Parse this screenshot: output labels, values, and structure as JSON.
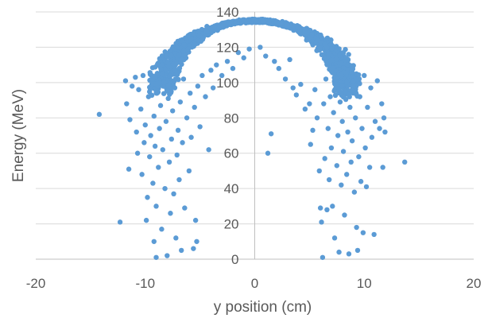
{
  "chart_data": {
    "type": "scatter",
    "title": "",
    "xlabel": "y position (cm)",
    "ylabel": "Energy (MeV)",
    "xlim": [
      -20,
      20
    ],
    "ylim": [
      0,
      140
    ],
    "x_ticks": [
      -20,
      -10,
      0,
      10,
      20
    ],
    "y_ticks": [
      0,
      20,
      40,
      60,
      80,
      100,
      120,
      140
    ],
    "x_tick_labels": [
      "-20",
      "-10",
      "0",
      "10",
      "20"
    ],
    "y_tick_labels": [
      "0",
      "20",
      "40",
      "60",
      "80",
      "100",
      "120",
      "140"
    ],
    "grid": "horizontal major gridlines",
    "legend": "none",
    "marker_color": "#5b9bd5",
    "series": [
      {
        "values": [
          {
            "x": -14.2,
            "y": 82
          },
          {
            "x": -12.3,
            "y": 21
          },
          {
            "x": -11.8,
            "y": 101
          },
          {
            "x": -11.7,
            "y": 88
          },
          {
            "x": -11.5,
            "y": 51
          },
          {
            "x": -11.4,
            "y": 79
          },
          {
            "x": -11.2,
            "y": 98
          },
          {
            "x": -10.9,
            "y": 103
          },
          {
            "x": -10.8,
            "y": 72
          },
          {
            "x": -10.7,
            "y": 60
          },
          {
            "x": -10.6,
            "y": 96
          },
          {
            "x": -10.4,
            "y": 85
          },
          {
            "x": -10.3,
            "y": 48
          },
          {
            "x": -10.2,
            "y": 104
          },
          {
            "x": -10.1,
            "y": 66
          },
          {
            "x": -10.0,
            "y": 76
          },
          {
            "x": -9.9,
            "y": 22
          },
          {
            "x": -9.8,
            "y": 35
          },
          {
            "x": -9.7,
            "y": 92
          },
          {
            "x": -9.6,
            "y": 58
          },
          {
            "x": -9.5,
            "y": 70
          },
          {
            "x": -9.4,
            "y": 99
          },
          {
            "x": -9.3,
            "y": 43
          },
          {
            "x": -9.2,
            "y": 81
          },
          {
            "x": -9.2,
            "y": 10
          },
          {
            "x": -9.1,
            "y": 64
          },
          {
            "x": -9.0,
            "y": 1
          },
          {
            "x": -9.0,
            "y": 30
          },
          {
            "x": -8.9,
            "y": 95
          },
          {
            "x": -8.8,
            "y": 52
          },
          {
            "x": -8.7,
            "y": 74
          },
          {
            "x": -8.6,
            "y": 87
          },
          {
            "x": -8.5,
            "y": 17
          },
          {
            "x": -8.4,
            "y": 62
          },
          {
            "x": -8.3,
            "y": 100
          },
          {
            "x": -8.2,
            "y": 40
          },
          {
            "x": -8.1,
            "y": 78
          },
          {
            "x": -8.0,
            "y": 2
          },
          {
            "x": -7.9,
            "y": 91
          },
          {
            "x": -7.8,
            "y": 55
          },
          {
            "x": -7.7,
            "y": 26
          },
          {
            "x": -7.6,
            "y": 68
          },
          {
            "x": -7.5,
            "y": 84
          },
          {
            "x": -7.4,
            "y": 37
          },
          {
            "x": -7.3,
            "y": 97
          },
          {
            "x": -7.2,
            "y": 12
          },
          {
            "x": -7.1,
            "y": 59
          },
          {
            "x": -7.0,
            "y": 73
          },
          {
            "x": -6.9,
            "y": 45
          },
          {
            "x": -6.8,
            "y": 89
          },
          {
            "x": -6.7,
            "y": 5
          },
          {
            "x": -6.6,
            "y": 66
          },
          {
            "x": -6.5,
            "y": 102
          },
          {
            "x": -6.4,
            "y": 29
          },
          {
            "x": -6.2,
            "y": 80
          },
          {
            "x": -6.0,
            "y": 50
          },
          {
            "x": -5.9,
            "y": 94
          },
          {
            "x": -5.8,
            "y": 69
          },
          {
            "x": -5.6,
            "y": 6
          },
          {
            "x": -5.5,
            "y": 86
          },
          {
            "x": -5.4,
            "y": 22
          },
          {
            "x": -5.3,
            "y": 10
          },
          {
            "x": -5.2,
            "y": 98
          },
          {
            "x": -5.0,
            "y": 75
          },
          {
            "x": -4.8,
            "y": 104
          },
          {
            "x": -4.5,
            "y": 92
          },
          {
            "x": -4.2,
            "y": 62
          },
          {
            "x": -4.0,
            "y": 107
          },
          {
            "x": -3.8,
            "y": 97
          },
          {
            "x": -3.5,
            "y": 110
          },
          {
            "x": -3.0,
            "y": 104
          },
          {
            "x": -2.5,
            "y": 112
          },
          {
            "x": -2.0,
            "y": 108
          },
          {
            "x": -1.5,
            "y": 117
          },
          {
            "x": -1.0,
            "y": 114
          },
          {
            "x": -0.5,
            "y": 119
          },
          {
            "x": 0.5,
            "y": 120
          },
          {
            "x": 1.0,
            "y": 115
          },
          {
            "x": 1.2,
            "y": 60
          },
          {
            "x": 1.5,
            "y": 71
          },
          {
            "x": 1.8,
            "y": 112
          },
          {
            "x": 2.2,
            "y": 108
          },
          {
            "x": 2.8,
            "y": 102
          },
          {
            "x": 3.2,
            "y": 113
          },
          {
            "x": 3.5,
            "y": 97
          },
          {
            "x": 3.8,
            "y": 93
          },
          {
            "x": 4.2,
            "y": 99
          },
          {
            "x": 4.6,
            "y": 85
          },
          {
            "x": 5.0,
            "y": 88
          },
          {
            "x": 5.1,
            "y": 65
          },
          {
            "x": 5.3,
            "y": 73
          },
          {
            "x": 5.5,
            "y": 96
          },
          {
            "x": 5.7,
            "y": 80
          },
          {
            "x": 5.9,
            "y": 50
          },
          {
            "x": 6.0,
            "y": 29
          },
          {
            "x": 6.1,
            "y": 21
          },
          {
            "x": 6.2,
            "y": 1
          },
          {
            "x": 6.3,
            "y": 88
          },
          {
            "x": 6.4,
            "y": 57
          },
          {
            "x": 6.5,
            "y": 102
          },
          {
            "x": 6.6,
            "y": 28
          },
          {
            "x": 6.7,
            "y": 74
          },
          {
            "x": 6.8,
            "y": 45
          },
          {
            "x": 6.9,
            "y": 92
          },
          {
            "x": 7.0,
            "y": 63
          },
          {
            "x": 7.1,
            "y": 30
          },
          {
            "x": 7.2,
            "y": 83
          },
          {
            "x": 7.3,
            "y": 12
          },
          {
            "x": 7.4,
            "y": 99
          },
          {
            "x": 7.5,
            "y": 53
          },
          {
            "x": 7.6,
            "y": 70
          },
          {
            "x": 7.7,
            "y": 4
          },
          {
            "x": 7.8,
            "y": 89
          },
          {
            "x": 7.9,
            "y": 42
          },
          {
            "x": 8.0,
            "y": 78
          },
          {
            "x": 8.1,
            "y": 61
          },
          {
            "x": 8.2,
            "y": 25
          },
          {
            "x": 8.3,
            "y": 95
          },
          {
            "x": 8.4,
            "y": 48
          },
          {
            "x": 8.5,
            "y": 72
          },
          {
            "x": 8.6,
            "y": 3
          },
          {
            "x": 8.7,
            "y": 86
          },
          {
            "x": 8.8,
            "y": 55
          },
          {
            "x": 8.9,
            "y": 67
          },
          {
            "x": 9.0,
            "y": 101
          },
          {
            "x": 9.1,
            "y": 38
          },
          {
            "x": 9.2,
            "y": 80
          },
          {
            "x": 9.3,
            "y": 18
          },
          {
            "x": 9.4,
            "y": 5
          },
          {
            "x": 9.5,
            "y": 58
          },
          {
            "x": 9.6,
            "y": 92
          },
          {
            "x": 9.7,
            "y": 44
          },
          {
            "x": 9.8,
            "y": 74
          },
          {
            "x": 9.9,
            "y": 15
          },
          {
            "x": 10.0,
            "y": 104
          },
          {
            "x": 10.1,
            "y": 63
          },
          {
            "x": 10.2,
            "y": 41
          },
          {
            "x": 10.3,
            "y": 86
          },
          {
            "x": 10.5,
            "y": 52
          },
          {
            "x": 10.6,
            "y": 97
          },
          {
            "x": 10.7,
            "y": 69
          },
          {
            "x": 10.9,
            "y": 14
          },
          {
            "x": 11.0,
            "y": 78
          },
          {
            "x": 11.2,
            "y": 101
          },
          {
            "x": 11.4,
            "y": 74
          },
          {
            "x": 11.6,
            "y": 88
          },
          {
            "x": 11.7,
            "y": 52
          },
          {
            "x": 11.8,
            "y": 80
          },
          {
            "x": 11.9,
            "y": 72
          },
          {
            "x": 13.7,
            "y": 55
          }
        ]
      }
    ]
  }
}
